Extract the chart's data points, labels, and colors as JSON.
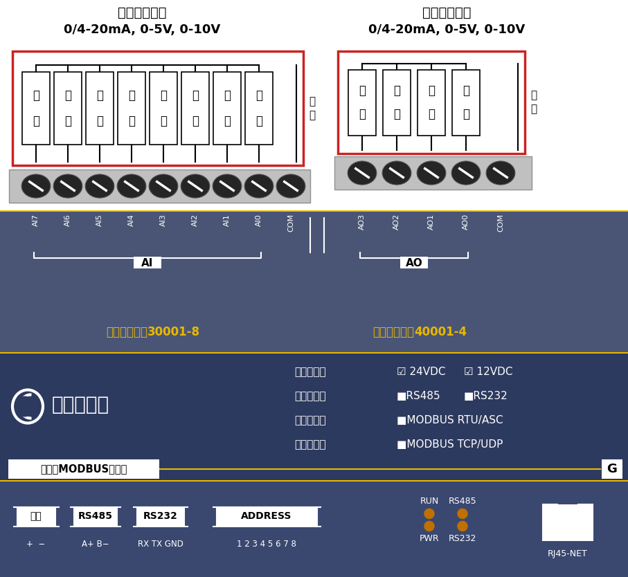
{
  "bg_white": "#ffffff",
  "bg_steel": "#4a5575",
  "bg_dark": "#2d3a5f",
  "bg_term": "#3a4870",
  "yellow": "#e8b800",
  "red_border": "#cc2222",
  "screw_dark": "#252525",
  "screw_light": "#aaaaaa",
  "title_ai": "模拟量输入：",
  "subtitle_ai": "0/4-20mA, 0-5V, 0-10V",
  "title_ao": "模拟量输出：",
  "subtitle_ao": "0/4-20mA, 0-5V, 0-10V",
  "signal_char": "信号",
  "load_char": "负载",
  "neg_char": "负端",
  "ai_labels": [
    "AI7",
    "AI6",
    "AI5",
    "AI4",
    "AI3",
    "AI2",
    "AI1",
    "AI0",
    "COM"
  ],
  "ao_labels": [
    "AO3",
    "AO2",
    "AO1",
    "AO0",
    "COM"
  ],
  "reg_ai_pre": "寄存器地址：",
  "reg_ai_num": "30001-8",
  "reg_ao_pre": "寄存器地址：",
  "reg_ao_num": "40001-4",
  "logo_text": "工业控制器",
  "spec1_pre": "供电电压：",
  "spec1_a": "☑ 24VDC",
  "spec1_b": "☑ 12VDC",
  "spec2_pre": "通讯接口：",
  "spec2_a": "■RS485",
  "spec2_b": "■RS232",
  "spec3_pre": "通讯协议：",
  "spec3_a": "■MODBUS RTU/ASC",
  "spec4_pre": "以太网口：",
  "spec4_a": "■MODBUS TCP/UDP",
  "bottom_label": "高性能MODBUS控制器",
  "G_label": "G",
  "lbl_power": "电源",
  "lbl_rs485": "RS485",
  "lbl_rs232": "RS232",
  "lbl_addr": "ADDRESS",
  "sub_power": "+  −",
  "sub_rs485": "A+ B−",
  "sub_rs232": "RX TX GND",
  "sub_addr": "1 2 3 4 5 6 7 8",
  "lbl_run": "RUN",
  "lbl_pwr": "PWR",
  "lbl_rs485b": "RS485",
  "lbl_rs232b": "RS232",
  "lbl_rj45": "RJ45-NET"
}
